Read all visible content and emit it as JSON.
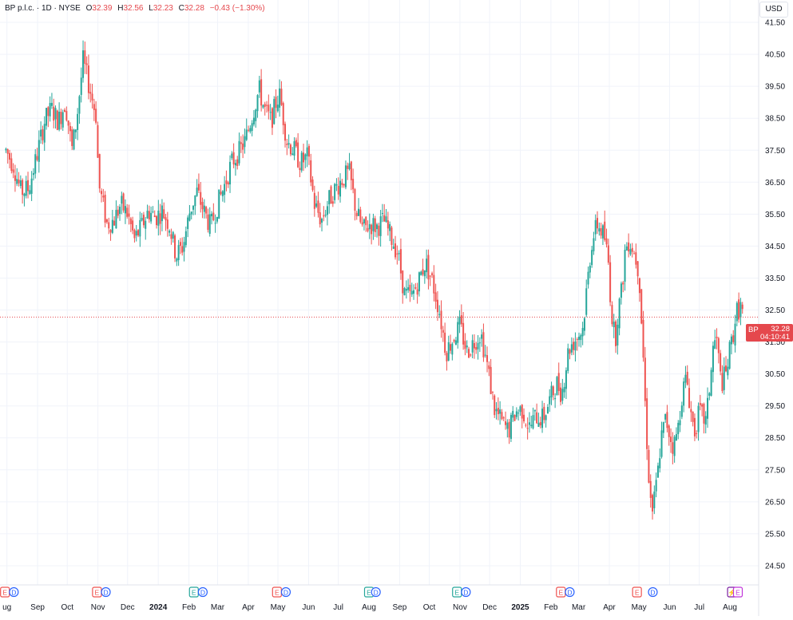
{
  "header": {
    "symbol": "BP p.l.c. · 1D · NYSE",
    "open_label": "O",
    "open": "32.39",
    "high_label": "H",
    "high": "32.56",
    "low_label": "L",
    "low": "32.23",
    "close_label": "C",
    "close": "32.28",
    "change": "−0.43 (−1.30%)"
  },
  "currency": "USD",
  "last_price": {
    "symbol": "BP",
    "price": "32.28",
    "countdown": "04:10:41"
  },
  "colors": {
    "up": "#26a69a",
    "down": "#ef5350",
    "grid": "#f0f3fa",
    "text": "#131722",
    "badge": "#e5484d"
  },
  "chart_data": {
    "type": "candlestick",
    "y_ticks": [
      "24.50",
      "25.50",
      "26.50",
      "27.50",
      "28.50",
      "29.50",
      "30.50",
      "31.50",
      "32.50",
      "33.50",
      "34.50",
      "35.50",
      "36.50",
      "37.50",
      "38.50",
      "39.50",
      "40.50",
      "41.50"
    ],
    "ylim": [
      23.9,
      42.2
    ],
    "x_ticks": [
      {
        "label": "ug",
        "date": "2023-08-01"
      },
      {
        "label": "Sep",
        "date": "2023-09-01"
      },
      {
        "label": "Oct",
        "date": "2023-10-01"
      },
      {
        "label": "Nov",
        "date": "2023-11-01"
      },
      {
        "label": "Dec",
        "date": "2023-12-01"
      },
      {
        "label": "2024",
        "date": "2024-01-01"
      },
      {
        "label": "Feb",
        "date": "2024-02-01"
      },
      {
        "label": "Mar",
        "date": "2024-03-01"
      },
      {
        "label": "Apr",
        "date": "2024-04-01"
      },
      {
        "label": "May",
        "date": "2024-05-01"
      },
      {
        "label": "Jun",
        "date": "2024-06-01"
      },
      {
        "label": "Jul",
        "date": "2024-07-01"
      },
      {
        "label": "Aug",
        "date": "2024-08-01"
      },
      {
        "label": "Sep",
        "date": "2024-09-01"
      },
      {
        "label": "Oct",
        "date": "2024-10-01"
      },
      {
        "label": "Nov",
        "date": "2024-11-01"
      },
      {
        "label": "Dec",
        "date": "2024-12-01"
      },
      {
        "label": "2025",
        "date": "2025-01-01"
      },
      {
        "label": "Feb",
        "date": "2025-02-01"
      },
      {
        "label": "Mar",
        "date": "2025-03-01"
      },
      {
        "label": "Apr",
        "date": "2025-04-01"
      },
      {
        "label": "May",
        "date": "2025-05-01"
      },
      {
        "label": "Jun",
        "date": "2025-06-01"
      },
      {
        "label": "Jul",
        "date": "2025-07-01"
      },
      {
        "label": "Aug",
        "date": "2025-08-01"
      }
    ],
    "last_price": 32.28,
    "price_points": [
      {
        "date": "2023-07-31",
        "close": 37.5
      },
      {
        "date": "2023-08-08",
        "close": 37.0
      },
      {
        "date": "2023-08-15",
        "close": 36.2
      },
      {
        "date": "2023-08-23",
        "close": 36.3
      },
      {
        "date": "2023-08-31",
        "close": 37.3
      },
      {
        "date": "2023-09-08",
        "close": 38.4
      },
      {
        "date": "2023-09-15",
        "close": 38.8
      },
      {
        "date": "2023-09-22",
        "close": 38.4
      },
      {
        "date": "2023-09-29",
        "close": 39.0
      },
      {
        "date": "2023-10-06",
        "close": 37.5
      },
      {
        "date": "2023-10-11",
        "close": 38.6
      },
      {
        "date": "2023-10-17",
        "close": 40.3
      },
      {
        "date": "2023-10-24",
        "close": 39.4
      },
      {
        "date": "2023-10-30",
        "close": 38.6
      },
      {
        "date": "2023-11-02",
        "close": 36.4
      },
      {
        "date": "2023-11-10",
        "close": 35.2
      },
      {
        "date": "2023-11-17",
        "close": 35.3
      },
      {
        "date": "2023-11-24",
        "close": 35.8
      },
      {
        "date": "2023-12-01",
        "close": 35.5
      },
      {
        "date": "2023-12-08",
        "close": 34.7
      },
      {
        "date": "2023-12-15",
        "close": 35.1
      },
      {
        "date": "2023-12-22",
        "close": 35.6
      },
      {
        "date": "2023-12-29",
        "close": 35.4
      },
      {
        "date": "2024-01-05",
        "close": 35.6
      },
      {
        "date": "2024-01-12",
        "close": 35.2
      },
      {
        "date": "2024-01-19",
        "close": 34.2
      },
      {
        "date": "2024-01-26",
        "close": 34.5
      },
      {
        "date": "2024-02-02",
        "close": 35.6
      },
      {
        "date": "2024-02-09",
        "close": 36.2
      },
      {
        "date": "2024-02-16",
        "close": 35.6
      },
      {
        "date": "2024-02-23",
        "close": 35.1
      },
      {
        "date": "2024-03-01",
        "close": 35.8
      },
      {
        "date": "2024-03-08",
        "close": 36.4
      },
      {
        "date": "2024-03-15",
        "close": 37.1
      },
      {
        "date": "2024-03-22",
        "close": 37.4
      },
      {
        "date": "2024-03-29",
        "close": 37.8
      },
      {
        "date": "2024-04-05",
        "close": 38.6
      },
      {
        "date": "2024-04-12",
        "close": 39.4
      },
      {
        "date": "2024-04-17",
        "close": 38.8
      },
      {
        "date": "2024-04-24",
        "close": 38.4
      },
      {
        "date": "2024-04-30",
        "close": 39.1
      },
      {
        "date": "2024-05-03",
        "close": 39.2
      },
      {
        "date": "2024-05-10",
        "close": 37.8
      },
      {
        "date": "2024-05-17",
        "close": 37.5
      },
      {
        "date": "2024-05-24",
        "close": 37.1
      },
      {
        "date": "2024-05-31",
        "close": 37.3
      },
      {
        "date": "2024-06-07",
        "close": 35.8
      },
      {
        "date": "2024-06-14",
        "close": 35.3
      },
      {
        "date": "2024-06-21",
        "close": 35.9
      },
      {
        "date": "2024-06-28",
        "close": 36.3
      },
      {
        "date": "2024-07-05",
        "close": 36.6
      },
      {
        "date": "2024-07-12",
        "close": 36.8
      },
      {
        "date": "2024-07-19",
        "close": 35.6
      },
      {
        "date": "2024-07-26",
        "close": 35.0
      },
      {
        "date": "2024-08-02",
        "close": 35.2
      },
      {
        "date": "2024-08-09",
        "close": 35.1
      },
      {
        "date": "2024-08-16",
        "close": 35.3
      },
      {
        "date": "2024-08-23",
        "close": 34.8
      },
      {
        "date": "2024-08-30",
        "close": 34.3
      },
      {
        "date": "2024-09-06",
        "close": 33.0
      },
      {
        "date": "2024-09-13",
        "close": 32.9
      },
      {
        "date": "2024-09-20",
        "close": 33.4
      },
      {
        "date": "2024-09-27",
        "close": 34.0
      },
      {
        "date": "2024-10-04",
        "close": 33.4
      },
      {
        "date": "2024-10-11",
        "close": 32.5
      },
      {
        "date": "2024-10-18",
        "close": 31.2
      },
      {
        "date": "2024-10-25",
        "close": 31.6
      },
      {
        "date": "2024-11-01",
        "close": 32.0
      },
      {
        "date": "2024-11-08",
        "close": 31.2
      },
      {
        "date": "2024-11-15",
        "close": 31.5
      },
      {
        "date": "2024-11-22",
        "close": 31.8
      },
      {
        "date": "2024-11-29",
        "close": 30.7
      },
      {
        "date": "2024-12-06",
        "close": 29.4
      },
      {
        "date": "2024-12-13",
        "close": 29.0
      },
      {
        "date": "2024-12-20",
        "close": 28.7
      },
      {
        "date": "2024-12-27",
        "close": 29.3
      },
      {
        "date": "2025-01-03",
        "close": 29.4
      },
      {
        "date": "2025-01-10",
        "close": 28.8
      },
      {
        "date": "2025-01-17",
        "close": 29.2
      },
      {
        "date": "2025-01-24",
        "close": 29.1
      },
      {
        "date": "2025-01-31",
        "close": 29.7
      },
      {
        "date": "2025-02-07",
        "close": 30.2
      },
      {
        "date": "2025-02-12",
        "close": 29.9
      },
      {
        "date": "2025-02-19",
        "close": 31.3
      },
      {
        "date": "2025-02-26",
        "close": 31.6
      },
      {
        "date": "2025-03-05",
        "close": 31.9
      },
      {
        "date": "2025-03-10",
        "close": 33.4
      },
      {
        "date": "2025-03-14",
        "close": 34.6
      },
      {
        "date": "2025-03-20",
        "close": 35.2
      },
      {
        "date": "2025-03-27",
        "close": 34.8
      },
      {
        "date": "2025-03-31",
        "close": 34.0
      },
      {
        "date": "2025-04-03",
        "close": 32.5
      },
      {
        "date": "2025-04-07",
        "close": 31.5
      },
      {
        "date": "2025-04-09",
        "close": 32.3
      },
      {
        "date": "2025-04-14",
        "close": 33.2
      },
      {
        "date": "2025-04-17",
        "close": 34.4
      },
      {
        "date": "2025-04-21",
        "close": 34.7
      },
      {
        "date": "2025-04-24",
        "close": 34.5
      },
      {
        "date": "2025-04-28",
        "close": 34.1
      },
      {
        "date": "2025-05-01",
        "close": 33.7
      },
      {
        "date": "2025-05-05",
        "close": 31.3
      },
      {
        "date": "2025-05-08",
        "close": 29.0
      },
      {
        "date": "2025-05-12",
        "close": 26.7
      },
      {
        "date": "2025-05-15",
        "close": 26.2
      },
      {
        "date": "2025-05-20",
        "close": 27.4
      },
      {
        "date": "2025-05-23",
        "close": 28.4
      },
      {
        "date": "2025-05-28",
        "close": 29.1
      },
      {
        "date": "2025-06-02",
        "close": 28.5
      },
      {
        "date": "2025-06-05",
        "close": 28.2
      },
      {
        "date": "2025-06-10",
        "close": 28.9
      },
      {
        "date": "2025-06-13",
        "close": 29.8
      },
      {
        "date": "2025-06-18",
        "close": 30.4
      },
      {
        "date": "2025-06-23",
        "close": 29.2
      },
      {
        "date": "2025-06-26",
        "close": 28.7
      },
      {
        "date": "2025-07-01",
        "close": 29.3
      },
      {
        "date": "2025-07-03",
        "close": 29.2
      },
      {
        "date": "2025-07-08",
        "close": 29.0
      },
      {
        "date": "2025-07-11",
        "close": 30.0
      },
      {
        "date": "2025-07-15",
        "close": 31.3
      },
      {
        "date": "2025-07-18",
        "close": 31.7
      },
      {
        "date": "2025-07-23",
        "close": 30.2
      },
      {
        "date": "2025-07-28",
        "close": 30.5
      },
      {
        "date": "2025-07-31",
        "close": 31.1
      },
      {
        "date": "2025-08-04",
        "close": 31.7
      },
      {
        "date": "2025-08-07",
        "close": 32.4
      },
      {
        "date": "2025-08-12",
        "close": 32.6
      },
      {
        "date": "2025-08-15",
        "close": 32.28
      }
    ],
    "events": [
      {
        "date": "2023-07-30",
        "label": "E",
        "kind": "earnings"
      },
      {
        "date": "2023-08-08",
        "label": "D",
        "kind": "dividend"
      },
      {
        "date": "2023-10-31",
        "label": "E",
        "kind": "earnings"
      },
      {
        "date": "2023-11-09",
        "label": "D",
        "kind": "dividend"
      },
      {
        "date": "2024-02-06",
        "label": "E",
        "kind": "earnings-met"
      },
      {
        "date": "2024-02-15",
        "label": "D",
        "kind": "dividend"
      },
      {
        "date": "2024-04-30",
        "label": "E",
        "kind": "earnings"
      },
      {
        "date": "2024-05-09",
        "label": "D",
        "kind": "dividend"
      },
      {
        "date": "2024-08-01",
        "label": "E",
        "kind": "earnings-met"
      },
      {
        "date": "2024-08-08",
        "label": "D",
        "kind": "dividend"
      },
      {
        "date": "2024-10-29",
        "label": "E",
        "kind": "earnings-met"
      },
      {
        "date": "2024-11-07",
        "label": "D",
        "kind": "dividend"
      },
      {
        "date": "2025-02-11",
        "label": "E",
        "kind": "earnings"
      },
      {
        "date": "2025-02-20",
        "label": "D",
        "kind": "dividend"
      },
      {
        "date": "2025-04-29",
        "label": "E",
        "kind": "earnings"
      },
      {
        "date": "2025-05-15",
        "label": "D",
        "kind": "dividend"
      },
      {
        "date": "2025-08-03",
        "label": "⚡",
        "kind": "split"
      },
      {
        "date": "2025-08-09",
        "label": "E",
        "kind": "upcoming"
      }
    ]
  }
}
